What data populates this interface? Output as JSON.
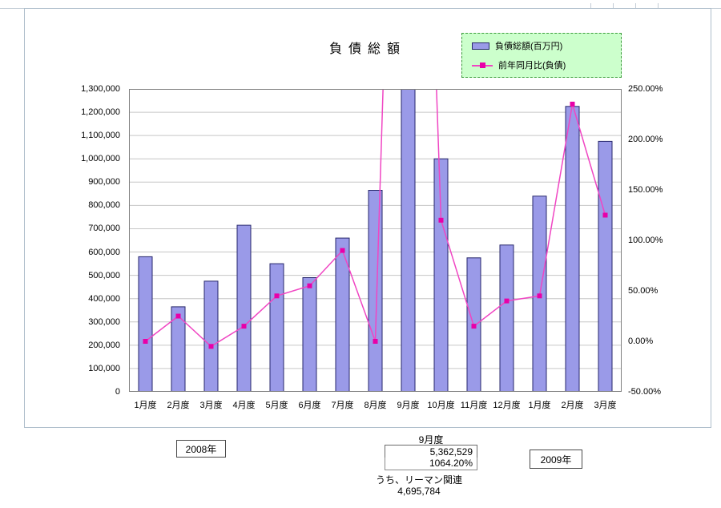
{
  "chart_data": {
    "type": "bar",
    "subtype": "bar-line combo, dual axis",
    "title": "負債総額",
    "categories": [
      "1月度",
      "2月度",
      "3月度",
      "4月度",
      "5月度",
      "6月度",
      "7月度",
      "8月度",
      "9月度",
      "10月度",
      "11月度",
      "12月度",
      "1月度",
      "2月度",
      "3月度"
    ],
    "series": [
      {
        "name": "負債総額(百万円)",
        "type": "bar",
        "axis": "left",
        "values": [
          580000,
          365000,
          475000,
          715000,
          550000,
          490000,
          660000,
          865000,
          5362529,
          1000000,
          575000,
          630000,
          840000,
          1225000,
          1075000
        ]
      },
      {
        "name": "前年同月比(負債)",
        "type": "line",
        "axis": "right",
        "unit": "%",
        "values": [
          0,
          25,
          -5,
          15,
          45,
          55,
          90,
          0,
          1064.2,
          120,
          15,
          40,
          45,
          235,
          125
        ]
      }
    ],
    "left_axis": {
      "min": 0,
      "max": 1300000,
      "step": 100000,
      "ticks": [
        "0",
        "100,000",
        "200,000",
        "300,000",
        "400,000",
        "500,000",
        "600,000",
        "700,000",
        "800,000",
        "900,000",
        "1,000,000",
        "1,100,000",
        "1,200,000",
        "1,300,000"
      ]
    },
    "right_axis": {
      "min": -50,
      "max": 250,
      "step": 50,
      "ticks": [
        "-50.00%",
        "0.00%",
        "50.00%",
        "100.00%",
        "150.00%",
        "200.00%",
        "250.00%"
      ]
    },
    "grid": true,
    "legend_position": "top-right",
    "colors": {
      "bar": "#9a9ae8",
      "bar_border": "#27276b",
      "line": "#f046c3",
      "marker": "#e800a8",
      "grid": "#c6c6c6",
      "plot_border": "#808080",
      "legend_bg": "#ccffcc",
      "legend_border": "#3c9c3c"
    }
  },
  "annotations": {
    "year_left": "2008年",
    "year_right": "2009年",
    "callout": {
      "month": "9月度",
      "value": "5,362,529",
      "percent": "1064.20%",
      "note": "うち、リーマン関連",
      "note_value": "4,695,784"
    }
  }
}
